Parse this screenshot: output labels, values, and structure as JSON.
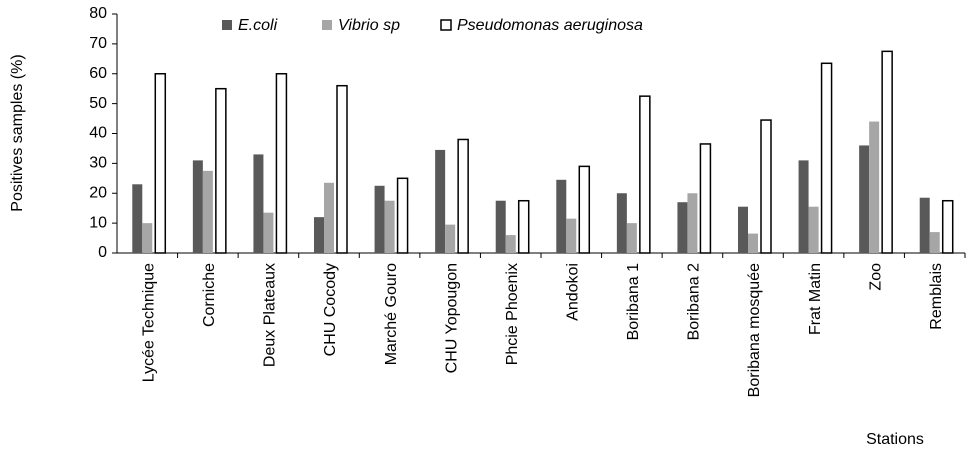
{
  "chart_data": {
    "type": "bar",
    "xlabel": "Stations",
    "ylabel": "Positives samples (%)",
    "categories": [
      "Lycée Technique",
      "Corniche",
      "Deux Plateaux",
      "CHU Cocody",
      "Marché Gouro",
      "CHU Yopougon",
      "Phcie Phoenix",
      "Andokoi",
      "Boribana 1",
      "Boribana 2",
      "Boribana mosquée",
      "Frat Matin",
      "Zoo",
      "Remblais"
    ],
    "series": [
      {
        "name": "E.coli",
        "color": "#595959",
        "values": [
          23,
          31,
          33,
          12,
          22.5,
          34.5,
          17.5,
          24.5,
          20,
          17,
          15.5,
          31,
          36,
          18.5
        ]
      },
      {
        "name": "Vibrio sp",
        "color": "#a6a6a6",
        "values": [
          10,
          27.5,
          13.5,
          23.5,
          17.5,
          9.5,
          6,
          11.5,
          10,
          20,
          6.5,
          15.5,
          44,
          7
        ]
      },
      {
        "name": "Pseudomonas aeruginosa",
        "color": "#ffffff",
        "values": [
          60,
          55,
          60,
          56,
          25,
          38,
          17.5,
          29,
          52.5,
          36.5,
          44.5,
          63.5,
          67.5,
          17.5
        ]
      }
    ],
    "ylim": [
      0,
      80
    ],
    "yticks": [
      0,
      10,
      20,
      30,
      40,
      50,
      60,
      70,
      80
    ],
    "grid": false,
    "legend": "top"
  }
}
